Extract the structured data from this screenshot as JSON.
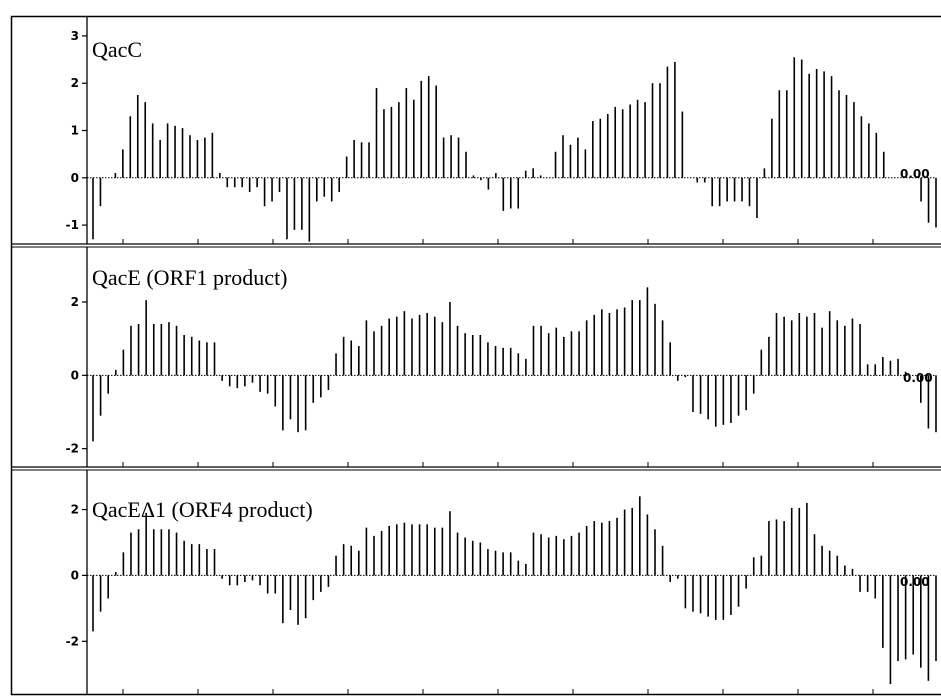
{
  "chart_data": [
    {
      "type": "bar",
      "title": "QacC",
      "ylim": [
        -1.4,
        3.4
      ],
      "yticks": [
        3,
        2,
        1,
        0,
        -1
      ],
      "ytick_labels": [
        "3",
        "2",
        "1",
        "0",
        "-1"
      ],
      "end_label": "0.00",
      "values": [
        -1.3,
        -0.6,
        0,
        0.1,
        0.6,
        1.3,
        1.75,
        1.6,
        1.15,
        0.8,
        1.15,
        1.1,
        1.05,
        0.9,
        0.8,
        0.85,
        0.95,
        0.1,
        -0.2,
        -0.2,
        -0.2,
        -0.3,
        -0.2,
        -0.6,
        -0.5,
        -0.3,
        -1.3,
        -1.1,
        -1.1,
        -1.35,
        -0.5,
        -0.4,
        -0.5,
        -0.3,
        0.45,
        0.8,
        0.75,
        0.75,
        1.9,
        1.45,
        1.5,
        1.6,
        1.9,
        1.65,
        2.05,
        2.15,
        1.95,
        0.85,
        0.9,
        0.85,
        0.55,
        0.05,
        -0.05,
        -0.25,
        0.1,
        -0.7,
        -0.65,
        -0.65,
        0.15,
        0.2,
        0.05,
        0,
        0.55,
        0.9,
        0.7,
        0.85,
        0.6,
        1.2,
        1.25,
        1.35,
        1.5,
        1.45,
        1.55,
        1.65,
        1.6,
        2.0,
        2.0,
        2.35,
        2.45,
        1.4,
        0,
        -0.1,
        -0.1,
        -0.6,
        -0.6,
        -0.5,
        -0.5,
        -0.5,
        -0.6,
        -0.85,
        0.2,
        1.25,
        1.85,
        1.85,
        2.55,
        2.5,
        2.2,
        2.3,
        2.25,
        2.15,
        1.85,
        1.75,
        1.6,
        1.3,
        1.15,
        0.95,
        0.55,
        0,
        0,
        0,
        0,
        -0.5,
        -0.95,
        -1.05
      ]
    },
    {
      "type": "bar",
      "title": "QacE (ORF1 product)",
      "ylim": [
        -2.5,
        3.5
      ],
      "yticks": [
        2,
        0,
        -2
      ],
      "ytick_labels": [
        "2",
        "0",
        "-2"
      ],
      "end_label": "0.00",
      "values": [
        -1.8,
        -1.1,
        -0.5,
        0.15,
        0.7,
        1.35,
        1.4,
        2.05,
        1.4,
        1.4,
        1.45,
        1.35,
        1.1,
        1.05,
        0.95,
        0.9,
        0.9,
        -0.15,
        -0.3,
        -0.35,
        -0.3,
        -0.2,
        -0.45,
        -0.5,
        -0.85,
        -1.5,
        -1.2,
        -1.55,
        -1.5,
        -0.75,
        -0.6,
        -0.4,
        0.6,
        1.05,
        0.95,
        0.8,
        1.5,
        1.2,
        1.35,
        1.55,
        1.6,
        1.75,
        1.55,
        1.65,
        1.7,
        1.6,
        1.45,
        2.0,
        1.35,
        1.15,
        1.1,
        1.1,
        0.9,
        0.8,
        0.75,
        0.75,
        0.6,
        0.45,
        1.35,
        1.35,
        1.15,
        1.3,
        1.05,
        1.2,
        1.2,
        1.5,
        1.65,
        1.8,
        1.7,
        1.8,
        1.85,
        2.05,
        2.05,
        2.4,
        1.95,
        1.5,
        0.9,
        -0.15,
        -0.05,
        -1.0,
        -1.05,
        -1.2,
        -1.4,
        -1.35,
        -1.3,
        -1.1,
        -0.95,
        -0.5,
        0.7,
        1.05,
        1.7,
        1.6,
        1.5,
        1.7,
        1.6,
        1.7,
        1.3,
        1.75,
        1.5,
        1.35,
        1.55,
        1.4,
        0.3,
        0.3,
        0.5,
        0.4,
        0.45,
        0.1,
        0,
        -0.75,
        -1.45,
        -1.55
      ]
    },
    {
      "type": "bar",
      "title": "QacEΔ1 (ORF4 product)",
      "ylim": [
        -3.6,
        3.2
      ],
      "yticks": [
        2,
        0,
        -2
      ],
      "ytick_labels": [
        "2",
        "0",
        "-2"
      ],
      "end_label": "0.00",
      "values": [
        -1.7,
        -1.1,
        -0.7,
        0.1,
        0.7,
        1.3,
        1.4,
        1.9,
        1.4,
        1.4,
        1.4,
        1.3,
        1.05,
        0.95,
        0.95,
        0.8,
        0.8,
        -0.1,
        -0.3,
        -0.3,
        -0.2,
        -0.15,
        -0.3,
        -0.55,
        -0.55,
        -1.45,
        -1.05,
        -1.5,
        -1.3,
        -0.75,
        -0.5,
        -0.35,
        0.6,
        0.95,
        0.9,
        0.75,
        1.45,
        1.2,
        1.35,
        1.5,
        1.55,
        1.6,
        1.55,
        1.55,
        1.55,
        1.45,
        1.45,
        1.95,
        1.3,
        1.15,
        1.05,
        1.0,
        0.8,
        0.75,
        0.7,
        0.7,
        0.45,
        0.35,
        1.3,
        1.25,
        1.15,
        1.2,
        1.1,
        1.2,
        1.3,
        1.5,
        1.65,
        1.6,
        1.65,
        1.75,
        2.0,
        2.05,
        2.4,
        1.85,
        1.4,
        0.9,
        -0.2,
        -0.1,
        -1.0,
        -1.1,
        -1.15,
        -1.25,
        -1.35,
        -1.35,
        -1.2,
        -0.95,
        -0.4,
        0.55,
        0.6,
        1.65,
        1.7,
        1.65,
        2.05,
        2.05,
        2.2,
        1.25,
        0.9,
        0.75,
        0.6,
        0.3,
        0.2,
        -0.5,
        -0.5,
        -0.7,
        -2.2,
        -3.3,
        -2.6,
        -2.55,
        -2.4,
        -2.8,
        -3.2,
        -2.6
      ]
    }
  ]
}
